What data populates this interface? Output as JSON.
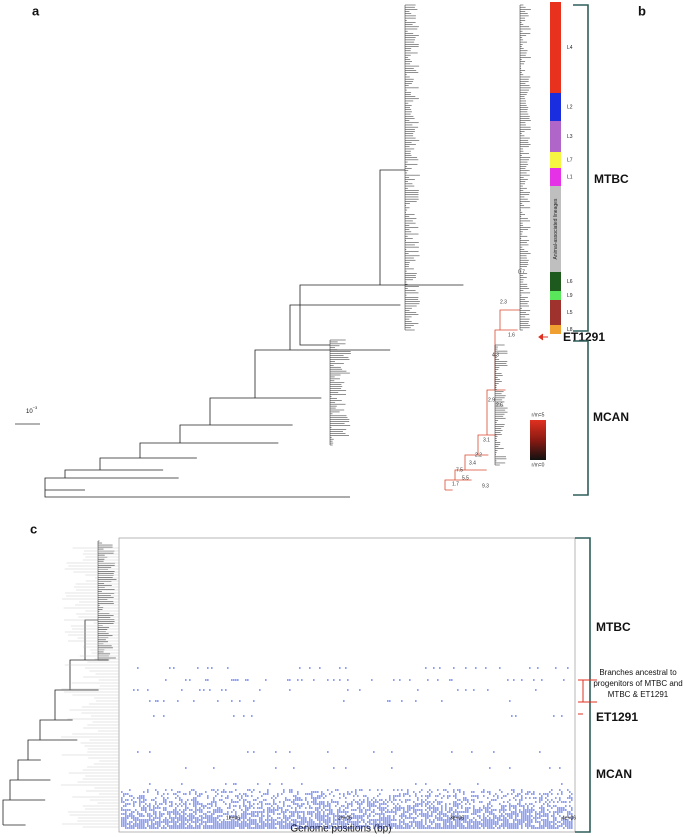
{
  "panel_a": {
    "label": "a",
    "scale_bar": {
      "base": "10",
      "exponent": "−3"
    }
  },
  "panel_b": {
    "label": "b",
    "lineages": [
      {
        "label": "L4",
        "color": "#e8321e"
      },
      {
        "label": "L2",
        "color": "#1a2ee0"
      },
      {
        "label": "L3",
        "color": "#b066c8"
      },
      {
        "label": "L7",
        "color": "#f5f542"
      },
      {
        "label": "L1",
        "color": "#e632e6"
      },
      {
        "label": "Animal-associated lineages",
        "color": "#bfbfbf"
      },
      {
        "label": "L6",
        "color": "#1e5a1e"
      },
      {
        "label": "L9",
        "color": "#5ae65a"
      },
      {
        "label": "L5",
        "color": "#a0322d"
      },
      {
        "label": "L8",
        "color": "#f0a030"
      }
    ],
    "groups": {
      "mtbc": "MTBC",
      "et1291": "ET1291",
      "mcan": "MCAN"
    },
    "legend": {
      "high": "r/m=5",
      "low": "r/m=0"
    },
    "branch_labels": [
      "0.7",
      "2.3",
      "1.6",
      "4.3",
      "2.9",
      "2.6",
      "3.1",
      "2.2",
      "7.5",
      "5.5",
      "3.4",
      "1.7",
      "9.3"
    ]
  },
  "panel_c": {
    "label": "c",
    "groups": {
      "mtbc": "MTBC",
      "et1291": "ET1291",
      "mcan": "MCAN"
    },
    "annotation": [
      "Branches ancestral to",
      "progenitors of MTBC and",
      "MTBC & ET1291"
    ],
    "x_ticks": [
      "1e+06",
      "2e+06",
      "3e+06",
      "4e+06"
    ],
    "x_axis_title": "Genome positions (bp)"
  }
}
